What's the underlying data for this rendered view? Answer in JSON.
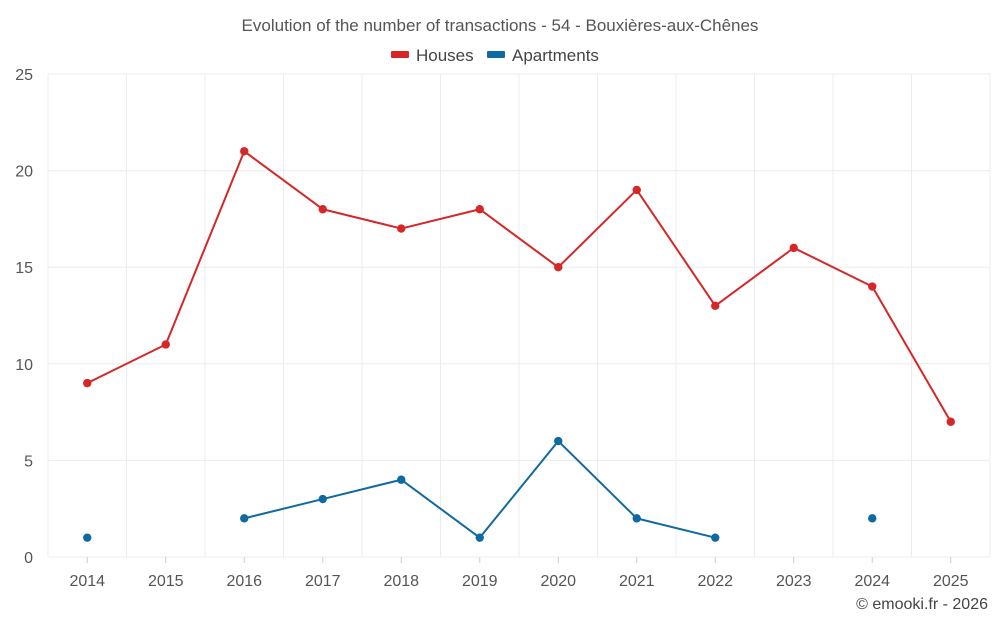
{
  "chart_data": {
    "type": "line",
    "title": "Evolution of the number of transactions - 54 - Bouxières-aux-Chênes",
    "categories": [
      "2014",
      "2015",
      "2016",
      "2017",
      "2018",
      "2019",
      "2020",
      "2021",
      "2022",
      "2023",
      "2024",
      "2025"
    ],
    "ylim": [
      0,
      25
    ],
    "yticks": [
      "0",
      "5",
      "10",
      "15",
      "20",
      "25"
    ],
    "grid": true,
    "legend_position": "top-center",
    "series": [
      {
        "name": "Houses",
        "color": "#d62728",
        "values": [
          9,
          11,
          21,
          18,
          17,
          18,
          15,
          19,
          13,
          16,
          14,
          7
        ]
      },
      {
        "name": "Apartments",
        "color": "#0f6aa0",
        "values": [
          1,
          null,
          2,
          3,
          4,
          1,
          6,
          2,
          1,
          null,
          2,
          null
        ]
      }
    ],
    "credit": "© emooki.fr - 2026"
  }
}
